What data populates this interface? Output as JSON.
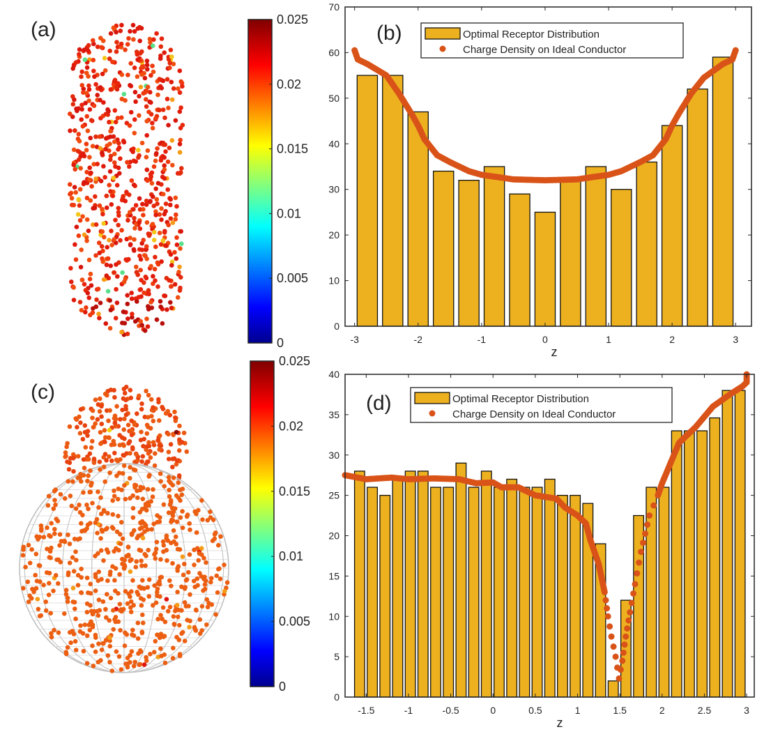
{
  "panels": {
    "a": {
      "label": "(a)"
    },
    "b": {
      "label": "(b)"
    },
    "c": {
      "label": "(c)"
    },
    "d": {
      "label": "(d)"
    }
  },
  "colorbars": [
    {
      "ticks": [
        "0",
        "0.005",
        "0.01",
        "0.015",
        "0.02",
        "0.025"
      ],
      "range": [
        0,
        0.025
      ]
    },
    {
      "ticks": [
        "0",
        "0.005",
        "0.01",
        "0.015",
        "0.02",
        "0.025"
      ],
      "range": [
        0,
        0.025
      ]
    }
  ],
  "colors": {
    "bar": "#EDB120",
    "dots": "#D95319",
    "grid": "#c8c8c8"
  },
  "chart_data": [
    {
      "type": "bar",
      "panel": "b",
      "xlabel": "z",
      "ylabel": "",
      "xlim": [
        -3.15,
        3.25
      ],
      "ylim": [
        0,
        70
      ],
      "xticks": [
        "-3",
        "-2",
        "-1",
        "0",
        "1",
        "2",
        "3"
      ],
      "xtick_values": [
        -3,
        -2,
        -1,
        0,
        1,
        2,
        3
      ],
      "yticks": [
        "0",
        "10",
        "20",
        "30",
        "40",
        "50",
        "60",
        "70"
      ],
      "ytick_values": [
        0,
        10,
        20,
        30,
        40,
        50,
        60,
        70
      ],
      "legend": [
        "Optimal Receptor Distribution",
        "Charge Density on Ideal Conductor"
      ],
      "legend_position": "top-right",
      "bar_width": 0.4,
      "series": [
        {
          "name": "Optimal Receptor Distribution",
          "type": "bar",
          "x": [
            -2.8,
            -2.4,
            -2.0,
            -1.6,
            -1.2,
            -0.8,
            -0.4,
            0.0,
            0.4,
            0.8,
            1.2,
            1.6,
            2.0,
            2.4,
            2.8
          ],
          "values": [
            55,
            55,
            47,
            34,
            32,
            35,
            29,
            25,
            32,
            35,
            30,
            36,
            44,
            52,
            59
          ]
        },
        {
          "name": "Charge Density on Ideal Conductor",
          "type": "scatter",
          "x": [
            -3.0,
            -2.95,
            -2.8,
            -2.5,
            -2.3,
            -2.1,
            -2.0,
            -1.9,
            -1.7,
            -1.5,
            -1.2,
            -1.0,
            -0.5,
            0.0,
            0.5,
            1.0,
            1.2,
            1.5,
            1.7,
            1.9,
            2.0,
            2.1,
            2.3,
            2.5,
            2.8,
            2.95,
            3.0
          ],
          "y": [
            60.5,
            58.5,
            57.5,
            55,
            51,
            46.5,
            44,
            41,
            37.5,
            36,
            34,
            33.2,
            32.2,
            32,
            32.2,
            33.2,
            34,
            36,
            37.5,
            41,
            44,
            46.5,
            51,
            54.5,
            57.5,
            58.5,
            60.5
          ]
        }
      ]
    },
    {
      "type": "bar",
      "panel": "d",
      "xlabel": "z",
      "ylabel": "",
      "xlim": [
        -1.75,
        3.09
      ],
      "ylim": [
        0,
        40
      ],
      "xticks": [
        "-1.5",
        "-1",
        "-0.5",
        "0",
        "0.5",
        "1",
        "1.5",
        "2",
        "2.5",
        "3"
      ],
      "xtick_values": [
        -1.5,
        -1,
        -0.5,
        0,
        0.5,
        1,
        1.5,
        2,
        2.5,
        3
      ],
      "yticks": [
        "0",
        "5",
        "10",
        "15",
        "20",
        "25",
        "30",
        "35",
        "40"
      ],
      "ytick_values": [
        0,
        5,
        10,
        15,
        20,
        25,
        30,
        35,
        40
      ],
      "legend": [
        "Optimal Receptor Distribution",
        "Charge Density on Ideal Conductor"
      ],
      "legend_position": "top-right",
      "bar_width": 0.15,
      "bar_start": -1.578,
      "series": [
        {
          "name": "Optimal Receptor Distribution",
          "type": "bar",
          "values": [
            28,
            26,
            25,
            27,
            28,
            28,
            26,
            26,
            29,
            26,
            28,
            26,
            27,
            26,
            26,
            27,
            25,
            25,
            24,
            19,
            2,
            12,
            22.5,
            26,
            26,
            33,
            33,
            33,
            34.6,
            38,
            38
          ]
        },
        {
          "name": "Charge Density on Ideal Conductor",
          "type": "scatter",
          "x": [
            -1.75,
            -1.5,
            -1.2,
            -1.0,
            -0.7,
            -0.4,
            -0.2,
            0.0,
            0.1,
            0.3,
            0.5,
            0.75,
            0.85,
            1.0,
            1.1,
            1.15,
            1.25,
            1.32,
            1.36,
            1.4,
            1.45,
            1.49,
            1.53,
            1.57,
            1.62,
            1.68,
            1.75,
            1.85,
            1.95,
            2.0,
            2.1,
            2.2,
            2.4,
            2.6,
            2.8,
            2.95,
            3.0,
            3.0
          ],
          "y": [
            27.5,
            27,
            27.2,
            27,
            27.1,
            27,
            26.5,
            26.6,
            26,
            26,
            25,
            24.6,
            23.5,
            22.5,
            21.5,
            19.5,
            16.5,
            13,
            10,
            7.5,
            5,
            2.3,
            4.5,
            7.5,
            10.5,
            14,
            18,
            22.5,
            25,
            26.5,
            29,
            31.5,
            33.5,
            36,
            37.5,
            38.5,
            39,
            40
          ]
        }
      ]
    }
  ]
}
